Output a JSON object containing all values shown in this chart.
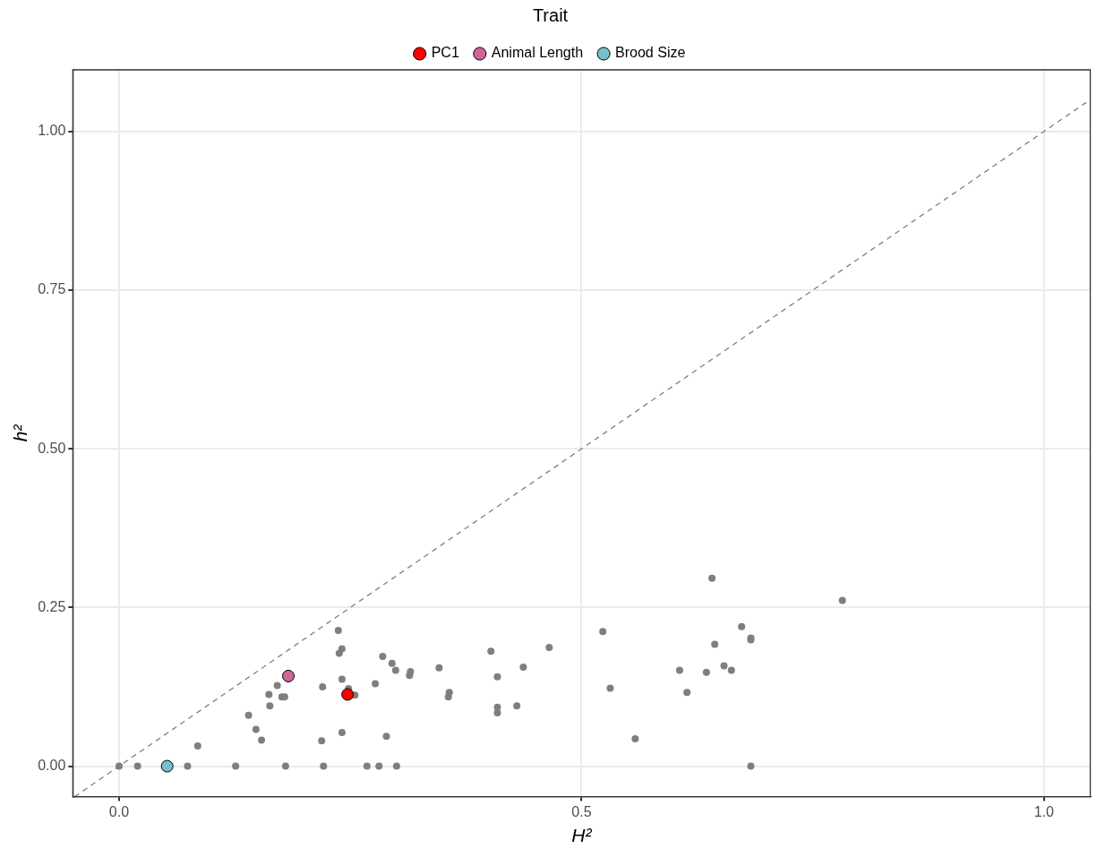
{
  "chart_data": {
    "type": "scatter",
    "xlabel": "H²",
    "ylabel": "h²",
    "legend_title": "Trait",
    "legend": "top",
    "grid": true,
    "marker": "circle",
    "xlim": [
      -0.05,
      1.05
    ],
    "xticks": [
      {
        "value": 0,
        "label": "0.0"
      },
      {
        "value": 0.5,
        "label": "0.5"
      },
      {
        "value": 1,
        "label": "1.0"
      }
    ],
    "ylim": [
      -0.048,
      1.097
    ],
    "yticks": [
      {
        "value": 0,
        "label": "0.00"
      },
      {
        "value": 0.25,
        "label": "0.25"
      },
      {
        "value": 0.5,
        "label": "0.50"
      },
      {
        "value": 0.75,
        "label": "0.75"
      },
      {
        "value": 1,
        "label": "1.00"
      }
    ],
    "series": [
      {
        "type": "line",
        "color": "#7f7f7f",
        "line_style": "dashed",
        "marker": "none",
        "x": [
          -0.048,
          1.05
        ],
        "values": [
          -0.048,
          1.05
        ]
      },
      {
        "color": "#7f7f7f",
        "x": [
          0,
          0.02,
          0.074,
          0.126,
          0.18,
          0.221,
          0.268,
          0.281,
          0.3,
          0.683,
          0.085,
          0.14,
          0.148,
          0.154,
          0.219,
          0.241,
          0.289,
          0.237,
          0.241,
          0.238,
          0.285,
          0.295,
          0.299,
          0.314,
          0.315,
          0.171,
          0.162,
          0.176,
          0.179,
          0.163,
          0.22,
          0.241,
          0.248,
          0.255,
          0.277,
          0.641,
          0.782,
          0.523,
          0.673,
          0.683,
          0.683,
          0.644,
          0.402,
          0.465,
          0.346,
          0.437,
          0.409,
          0.606,
          0.635,
          0.654,
          0.662,
          0.531,
          0.614,
          0.357,
          0.356,
          0.409,
          0.409,
          0.43,
          0.558
        ],
        "values": [
          0,
          0,
          0,
          0,
          0,
          0,
          0,
          0,
          0,
          0,
          0.032,
          0.08,
          0.058,
          0.041,
          0.04,
          0.053,
          0.047,
          0.214,
          0.185,
          0.178,
          0.173,
          0.162,
          0.151,
          0.143,
          0.149,
          0.127,
          0.113,
          0.109,
          0.109,
          0.095,
          0.125,
          0.137,
          0.122,
          0.112,
          0.13,
          0.296,
          0.261,
          0.212,
          0.22,
          0.202,
          0.199,
          0.192,
          0.181,
          0.187,
          0.155,
          0.156,
          0.141,
          0.151,
          0.148,
          0.158,
          0.151,
          0.123,
          0.116,
          0.116,
          0.109,
          0.093,
          0.084,
          0.095,
          0.043
        ]
      },
      {
        "name": "PC1",
        "color": "#ff0000",
        "x": [
          0.247
        ],
        "values": [
          0.113
        ]
      },
      {
        "name": "Animal Length",
        "color": "#cc6699",
        "x": [
          0.183
        ],
        "values": [
          0.142
        ]
      },
      {
        "name": "Brood Size",
        "color": "#76c1c8",
        "x": [
          0.052
        ],
        "values": [
          0
        ]
      }
    ]
  }
}
